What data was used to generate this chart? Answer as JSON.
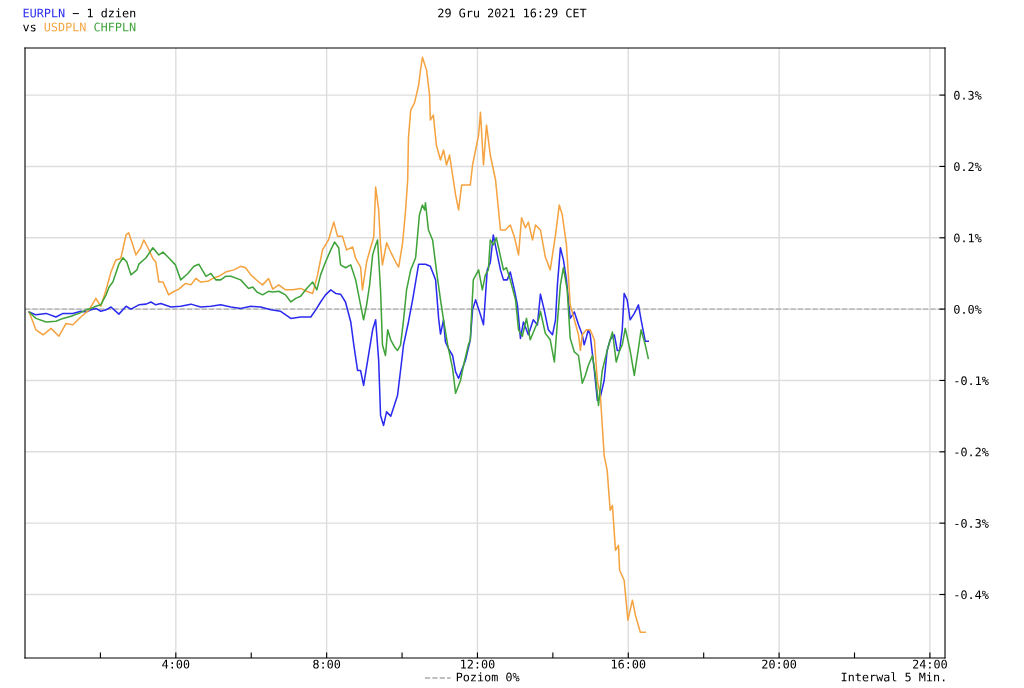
{
  "chart_data": {
    "type": "line",
    "title": "29 Gru 2021 16:29 CET",
    "annotations": [
      "− 1 dzien",
      "vs",
      "Interwal 5 Min."
    ],
    "xlim": [
      0,
      24.4
    ],
    "xticks": [
      {
        "value": 2,
        "label": null
      },
      {
        "value": 4,
        "label": "4:00"
      },
      {
        "value": 6,
        "label": null
      },
      {
        "value": 8,
        "label": "8:00"
      },
      {
        "value": 10,
        "label": null
      },
      {
        "value": 12,
        "label": "12:00"
      },
      {
        "value": 14,
        "label": null
      },
      {
        "value": 16,
        "label": "16:00"
      },
      {
        "value": 18,
        "label": null
      },
      {
        "value": 20,
        "label": "20:00"
      },
      {
        "value": 22,
        "label": null
      },
      {
        "value": 24,
        "label": "24:00"
      }
    ],
    "ylim": [
      -0.489,
      0.366
    ],
    "yticks": [
      {
        "value": -0.4,
        "label": "-0.4%"
      },
      {
        "value": -0.3,
        "label": "-0.3%"
      },
      {
        "value": -0.2,
        "label": "-0.2%"
      },
      {
        "value": -0.1,
        "label": "-0.1%"
      },
      {
        "value": 0,
        "label": "0.0%"
      },
      {
        "value": 0.1,
        "label": "0.1%"
      },
      {
        "value": 0.2,
        "label": "0.2%"
      },
      {
        "value": 0.3,
        "label": "0.3%"
      }
    ],
    "grid": true,
    "legend": "bottom",
    "marker": "none",
    "line_style": "solid",
    "ref_lines": [
      {
        "axis": "y",
        "value": 0,
        "label": "Poziom 0%",
        "color": "#aaaaaa",
        "line_style": "dashed"
      }
    ],
    "series": [
      {
        "name": "EURPLN",
        "color": "#2b2bf0",
        "x": [
          0.11,
          0.29,
          0.56,
          0.82,
          1.01,
          1.27,
          1.48,
          1.62,
          1.75,
          1.88,
          2.01,
          2.15,
          2.28,
          2.49,
          2.68,
          2.81,
          3.02,
          3.21,
          3.34,
          3.47,
          3.6,
          3.87,
          4.13,
          4.4,
          4.66,
          4.93,
          5.19,
          5.46,
          5.72,
          5.99,
          6.25,
          6.52,
          6.78,
          7.05,
          7.31,
          7.58,
          7.71,
          7.84,
          7.97,
          8.11,
          8.24,
          8.37,
          8.5,
          8.64,
          8.72,
          8.82,
          8.9,
          8.98,
          9.11,
          9.22,
          9.3,
          9.38,
          9.43,
          9.51,
          9.59,
          9.7,
          9.77,
          9.88,
          9.96,
          10.04,
          10.17,
          10.28,
          10.44,
          10.62,
          10.75,
          10.89,
          10.97,
          11.02,
          11.1,
          11.15,
          11.23,
          11.34,
          11.42,
          11.5,
          11.6,
          11.68,
          11.81,
          11.87,
          11.95,
          12.08,
          12.16,
          12.26,
          12.34,
          12.42,
          12.5,
          12.61,
          12.69,
          12.79,
          12.87,
          12.98,
          13.06,
          13.14,
          13.22,
          13.35,
          13.48,
          13.59,
          13.67,
          13.77,
          13.88,
          13.99,
          14.07,
          14.12,
          14.2,
          14.28,
          14.36,
          14.46,
          14.57,
          14.68,
          14.78,
          14.83,
          14.89,
          14.94,
          14.99,
          15.1,
          15.18,
          15.26,
          15.36,
          15.44,
          15.52,
          15.63,
          15.71,
          15.77,
          15.84,
          15.89,
          15.97,
          16.05,
          16.16,
          16.27,
          16.34,
          16.45,
          16.53
        ],
        "values": [
          -0.004,
          -0.008,
          -0.006,
          -0.011,
          -0.006,
          -0.006,
          -0.003,
          -0.004,
          -0.001,
          0.001,
          -0.003,
          -0.001,
          0.003,
          -0.007,
          0.004,
          0.0,
          0.006,
          0.007,
          0.01,
          0.006,
          0.008,
          0.003,
          0.004,
          0.007,
          0.003,
          0.004,
          0.006,
          0.003,
          0.001,
          0.004,
          0.003,
          -0.001,
          -0.003,
          -0.013,
          -0.011,
          -0.011,
          -0.001,
          0.01,
          0.02,
          0.027,
          0.022,
          0.021,
          0.01,
          -0.018,
          -0.05,
          -0.086,
          -0.086,
          -0.107,
          -0.065,
          -0.029,
          -0.015,
          -0.072,
          -0.149,
          -0.163,
          -0.144,
          -0.15,
          -0.139,
          -0.121,
          -0.086,
          -0.05,
          -0.018,
          0.013,
          0.063,
          0.063,
          0.06,
          0.041,
          -0.013,
          -0.035,
          -0.015,
          -0.046,
          -0.055,
          -0.065,
          -0.088,
          -0.097,
          -0.083,
          -0.072,
          -0.043,
          -0.001,
          0.013,
          -0.008,
          -0.022,
          0.055,
          0.065,
          0.104,
          0.083,
          0.055,
          0.041,
          0.041,
          0.052,
          0.027,
          0.006,
          -0.041,
          -0.018,
          -0.036,
          -0.015,
          -0.022,
          0.021,
          -0.001,
          -0.029,
          -0.036,
          -0.015,
          0.034,
          0.086,
          0.069,
          0.041,
          -0.013,
          -0.004,
          -0.022,
          -0.036,
          -0.05,
          -0.039,
          -0.029,
          -0.036,
          -0.086,
          -0.128,
          -0.123,
          -0.1,
          -0.058,
          -0.043,
          -0.036,
          -0.058,
          -0.058,
          -0.029,
          0.022,
          0.013,
          -0.015,
          -0.006,
          0.006,
          -0.015,
          -0.045,
          -0.045
        ]
      },
      {
        "name": "USDPLN",
        "color": "#f5a340",
        "x": [
          0.11,
          0.29,
          0.48,
          0.69,
          0.9,
          1.09,
          1.27,
          1.48,
          1.7,
          1.88,
          2.01,
          2.15,
          2.28,
          2.41,
          2.54,
          2.68,
          2.75,
          2.86,
          2.94,
          3.07,
          3.15,
          3.26,
          3.39,
          3.47,
          3.55,
          3.66,
          3.81,
          3.92,
          4.08,
          4.26,
          4.4,
          4.53,
          4.66,
          4.85,
          4.98,
          5.14,
          5.32,
          5.54,
          5.72,
          5.85,
          5.99,
          6.2,
          6.3,
          6.46,
          6.57,
          6.73,
          6.91,
          7.1,
          7.31,
          7.47,
          7.63,
          7.76,
          7.89,
          8.05,
          8.19,
          8.29,
          8.42,
          8.53,
          8.69,
          8.77,
          8.9,
          8.95,
          9.06,
          9.17,
          9.25,
          9.3,
          9.38,
          9.43,
          9.48,
          9.59,
          9.7,
          9.83,
          9.91,
          10.01,
          10.09,
          10.15,
          10.17,
          10.23,
          10.33,
          10.44,
          10.49,
          10.54,
          10.65,
          10.73,
          10.75,
          10.83,
          10.91,
          11.02,
          11.1,
          11.18,
          11.26,
          11.34,
          11.42,
          11.5,
          11.58,
          11.68,
          11.81,
          11.87,
          11.95,
          12.03,
          12.08,
          12.16,
          12.24,
          12.34,
          12.48,
          12.61,
          12.74,
          12.87,
          12.98,
          13.09,
          13.17,
          13.27,
          13.35,
          13.46,
          13.54,
          13.67,
          13.8,
          13.93,
          14.07,
          14.17,
          14.25,
          14.36,
          14.46,
          14.57,
          14.68,
          14.73,
          14.78,
          14.89,
          14.99,
          15.1,
          15.18,
          15.26,
          15.36,
          15.44,
          15.52,
          15.58,
          15.66,
          15.74,
          15.77,
          15.89,
          15.99,
          16.05,
          16.11,
          16.19,
          16.32,
          16.45
        ],
        "values": [
          -0.004,
          -0.029,
          -0.036,
          -0.027,
          -0.038,
          -0.02,
          -0.022,
          -0.011,
          -0.001,
          0.015,
          0.004,
          0.027,
          0.052,
          0.069,
          0.071,
          0.104,
          0.107,
          0.09,
          0.076,
          0.086,
          0.097,
          0.086,
          0.071,
          0.066,
          0.038,
          0.038,
          0.02,
          0.024,
          0.028,
          0.036,
          0.034,
          0.043,
          0.038,
          0.039,
          0.043,
          0.046,
          0.052,
          0.055,
          0.06,
          0.058,
          0.048,
          0.038,
          0.034,
          0.043,
          0.028,
          0.034,
          0.027,
          0.027,
          0.029,
          0.025,
          0.022,
          0.048,
          0.083,
          0.097,
          0.122,
          0.102,
          0.102,
          0.083,
          0.087,
          0.071,
          0.059,
          0.027,
          0.066,
          0.087,
          0.101,
          0.171,
          0.139,
          0.09,
          0.062,
          0.093,
          0.08,
          0.066,
          0.059,
          0.091,
          0.136,
          0.181,
          0.24,
          0.279,
          0.289,
          0.314,
          0.335,
          0.353,
          0.335,
          0.3,
          0.265,
          0.272,
          0.23,
          0.209,
          0.223,
          0.202,
          0.216,
          0.188,
          0.16,
          0.139,
          0.174,
          0.174,
          0.174,
          0.202,
          0.223,
          0.244,
          0.276,
          0.202,
          0.258,
          0.216,
          0.181,
          0.111,
          0.111,
          0.118,
          0.101,
          0.076,
          0.128,
          0.114,
          0.122,
          0.097,
          0.118,
          0.111,
          0.073,
          0.055,
          0.104,
          0.146,
          0.132,
          0.09,
          0.006,
          -0.015,
          -0.036,
          -0.058,
          -0.036,
          -0.029,
          -0.029,
          -0.043,
          -0.1,
          -0.121,
          -0.205,
          -0.226,
          -0.282,
          -0.275,
          -0.338,
          -0.331,
          -0.366,
          -0.38,
          -0.436,
          -0.422,
          -0.408,
          -0.429,
          -0.453,
          -0.453
        ]
      },
      {
        "name": "CHFPLN",
        "color": "#3fa33a",
        "x": [
          0.11,
          0.29,
          0.56,
          0.82,
          1.01,
          1.22,
          1.43,
          1.62,
          1.75,
          1.88,
          2.01,
          2.15,
          2.23,
          2.33,
          2.49,
          2.6,
          2.7,
          2.81,
          2.97,
          3.02,
          3.21,
          3.39,
          3.55,
          3.66,
          3.81,
          3.99,
          4.13,
          4.32,
          4.48,
          4.61,
          4.8,
          4.93,
          5.06,
          5.19,
          5.32,
          5.46,
          5.72,
          5.93,
          6.04,
          6.15,
          6.3,
          6.46,
          6.57,
          6.73,
          6.91,
          7.05,
          7.18,
          7.31,
          7.47,
          7.63,
          7.74,
          7.84,
          7.97,
          8.11,
          8.21,
          8.32,
          8.37,
          8.5,
          8.64,
          8.77,
          8.9,
          8.98,
          9.06,
          9.14,
          9.22,
          9.3,
          9.35,
          9.43,
          9.48,
          9.56,
          9.62,
          9.7,
          9.8,
          9.88,
          9.96,
          10.04,
          10.12,
          10.23,
          10.36,
          10.46,
          10.54,
          10.6,
          10.62,
          10.7,
          10.81,
          10.91,
          11.02,
          11.1,
          11.21,
          11.34,
          11.42,
          11.55,
          11.63,
          11.76,
          11.81,
          11.89,
          12.03,
          12.13,
          12.21,
          12.29,
          12.34,
          12.42,
          12.5,
          12.61,
          12.69,
          12.77,
          12.87,
          13.01,
          13.09,
          13.19,
          13.3,
          13.4,
          13.51,
          13.62,
          13.67,
          13.8,
          13.93,
          14.04,
          14.12,
          14.2,
          14.28,
          14.38,
          14.46,
          14.57,
          14.68,
          14.78,
          14.86,
          14.94,
          15.05,
          15.13,
          15.21,
          15.31,
          15.44,
          15.58,
          15.68,
          15.77,
          15.84,
          15.92,
          16.05,
          16.16,
          16.27,
          16.34,
          16.45,
          16.53
        ],
        "values": [
          -0.004,
          -0.013,
          -0.018,
          -0.017,
          -0.013,
          -0.01,
          -0.006,
          -0.001,
          0.001,
          0.004,
          0.006,
          0.02,
          0.031,
          0.038,
          0.063,
          0.072,
          0.066,
          0.048,
          0.055,
          0.063,
          0.072,
          0.086,
          0.076,
          0.08,
          0.072,
          0.062,
          0.041,
          0.05,
          0.06,
          0.063,
          0.046,
          0.05,
          0.041,
          0.041,
          0.046,
          0.046,
          0.041,
          0.029,
          0.031,
          0.024,
          0.02,
          0.025,
          0.024,
          0.025,
          0.02,
          0.01,
          0.015,
          0.018,
          0.029,
          0.038,
          0.027,
          0.048,
          0.066,
          0.083,
          0.094,
          0.086,
          0.062,
          0.058,
          0.062,
          0.041,
          0.006,
          -0.015,
          0.006,
          0.034,
          0.076,
          0.09,
          0.097,
          0.027,
          -0.05,
          -0.065,
          -0.029,
          -0.043,
          -0.053,
          -0.058,
          -0.05,
          -0.015,
          0.027,
          0.055,
          0.072,
          0.132,
          0.146,
          0.139,
          0.149,
          0.111,
          0.097,
          0.055,
          0.013,
          -0.015,
          -0.05,
          -0.083,
          -0.118,
          -0.1,
          -0.079,
          -0.05,
          -0.043,
          0.041,
          0.055,
          0.027,
          0.048,
          0.055,
          0.097,
          0.09,
          0.1,
          0.074,
          0.055,
          0.058,
          0.041,
          0.013,
          -0.029,
          -0.038,
          -0.013,
          -0.043,
          -0.029,
          -0.015,
          -0.003,
          -0.034,
          -0.043,
          -0.074,
          -0.018,
          0.034,
          0.058,
          0.027,
          -0.041,
          -0.06,
          -0.065,
          -0.104,
          -0.093,
          -0.079,
          -0.065,
          -0.093,
          -0.135,
          -0.086,
          -0.058,
          -0.032,
          -0.074,
          -0.058,
          -0.05,
          -0.027,
          -0.058,
          -0.093,
          -0.055,
          -0.029,
          -0.05,
          -0.069
        ]
      }
    ]
  }
}
